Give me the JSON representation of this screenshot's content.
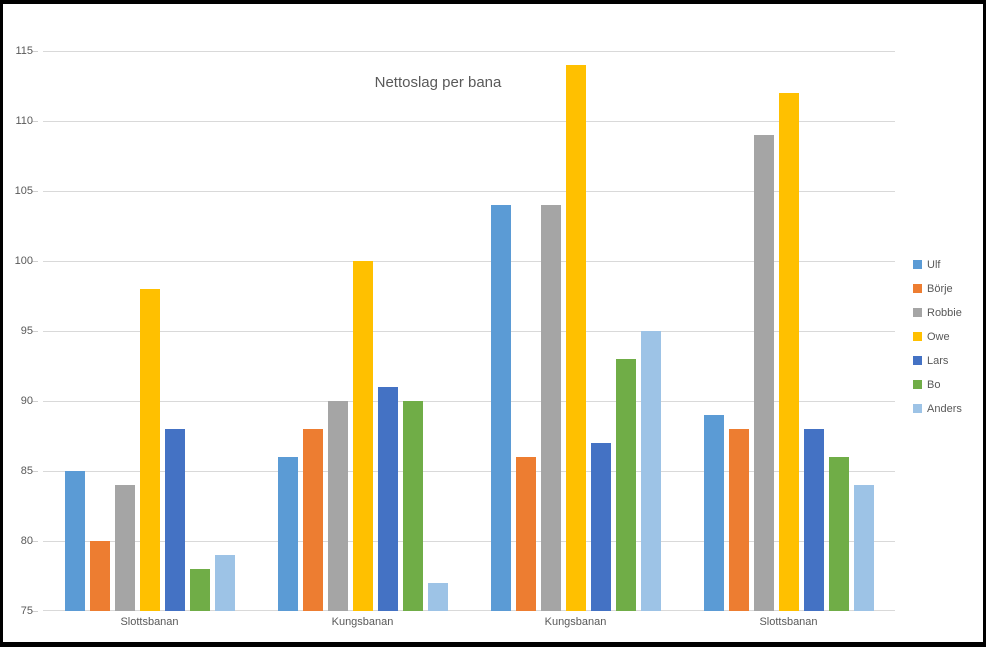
{
  "chart_data": {
    "type": "bar",
    "title": "Nettoslag per bana",
    "categories": [
      "Slottsbanan",
      "Kungsbanan",
      "Kungsbanan",
      "Slottsbanan"
    ],
    "series": [
      {
        "name": "Ulf",
        "color": "#5B9BD5",
        "values": [
          85,
          86,
          104,
          89
        ]
      },
      {
        "name": "Börje",
        "color": "#ED7D31",
        "values": [
          80,
          88,
          86,
          88
        ]
      },
      {
        "name": "Robbie",
        "color": "#A5A5A5",
        "values": [
          84,
          90,
          104,
          109
        ]
      },
      {
        "name": "Owe",
        "color": "#FFC000",
        "values": [
          98,
          100,
          114,
          112
        ]
      },
      {
        "name": "Lars",
        "color": "#4472C4",
        "values": [
          88,
          91,
          87,
          88
        ]
      },
      {
        "name": "Bo",
        "color": "#70AD47",
        "values": [
          78,
          90,
          93,
          86
        ]
      },
      {
        "name": "Anders",
        "color": "#9DC3E6",
        "values": [
          79,
          77,
          95,
          84
        ]
      }
    ],
    "ylim": [
      75,
      115
    ],
    "ytick_step": 5,
    "ytick_labels": [
      "75",
      "80",
      "85",
      "90",
      "95",
      "100",
      "105",
      "110",
      "115"
    ],
    "grid": true,
    "legend_position": "right",
    "colors": {
      "gridline": "#D9D9D9",
      "axis_text": "#595959",
      "title_text": "#595959",
      "frame": "#000000",
      "background": "#FFFFFF"
    }
  }
}
